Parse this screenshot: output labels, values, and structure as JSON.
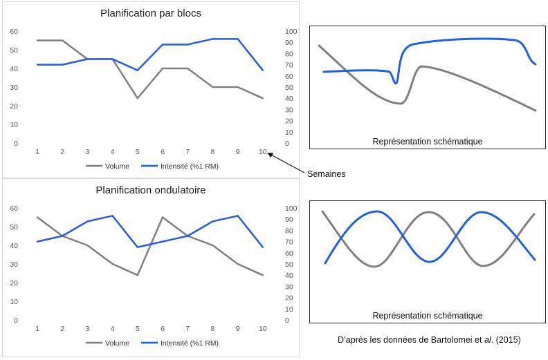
{
  "chart_data": [
    {
      "type": "line",
      "title": "Planification par blocs",
      "x": [
        1,
        2,
        3,
        4,
        5,
        6,
        7,
        8,
        9,
        10
      ],
      "series": [
        {
          "name": "Volume",
          "axis": "left",
          "color": "#7f7f7f",
          "values": [
            55,
            55,
            45,
            45,
            24,
            40,
            40,
            30,
            30,
            24
          ]
        },
        {
          "name": "Intensité (%1 RM)",
          "axis": "right",
          "color": "#1f5fe0",
          "values": [
            70,
            70,
            75,
            75,
            65,
            88,
            88,
            93,
            93,
            65
          ]
        }
      ],
      "y_left": {
        "min": 0,
        "max": 60,
        "step": 10
      },
      "y_right": {
        "min": 0,
        "max": 100,
        "step": 10
      },
      "grid": false,
      "legend": "bottom"
    },
    {
      "type": "line",
      "title": "Planification ondulatoire",
      "x": [
        1,
        2,
        3,
        4,
        5,
        6,
        7,
        8,
        9,
        10
      ],
      "series": [
        {
          "name": "Volume",
          "axis": "left",
          "color": "#7f7f7f",
          "values": [
            55,
            45,
            40,
            30,
            24,
            55,
            45,
            40,
            30,
            24
          ]
        },
        {
          "name": "Intensité (%1 RM)",
          "axis": "right",
          "color": "#1f5fe0",
          "values": [
            70,
            75,
            88,
            93,
            65,
            70,
            75,
            88,
            93,
            65
          ]
        }
      ],
      "y_left": {
        "min": 0,
        "max": 60,
        "step": 10
      },
      "y_right": {
        "min": 0,
        "max": 100,
        "step": 10
      },
      "grid": false,
      "legend": "bottom"
    }
  ],
  "schemas": {
    "top_caption": "Représentation schématique",
    "bottom_caption": "Représentation schématique",
    "volume_color": "#7f7f7f",
    "intensity_color": "#1f5fe0"
  },
  "annotations": {
    "weeks_label": "Semaines",
    "source_prefix": "D’après les données de Bartolomei et ",
    "source_italic": "al",
    "source_suffix": ". (2015)"
  }
}
